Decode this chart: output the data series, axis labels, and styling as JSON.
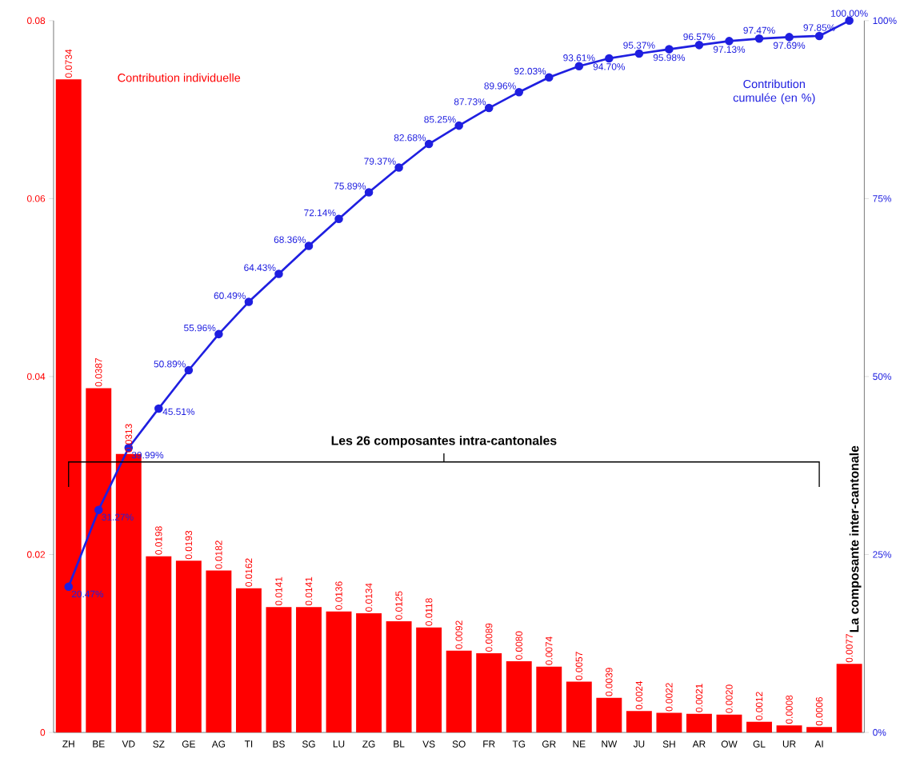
{
  "chart_data": {
    "type": "bar",
    "categories": [
      "ZH",
      "BE",
      "VD",
      "SZ",
      "GE",
      "AG",
      "TI",
      "BS",
      "SG",
      "LU",
      "ZG",
      "BL",
      "VS",
      "SO",
      "FR",
      "TG",
      "GR",
      "NE",
      "NW",
      "JU",
      "SH",
      "AR",
      "OW",
      "GL",
      "UR",
      "AI",
      null
    ],
    "series": [
      {
        "name": "Contribution individuelle",
        "color": "#ff0000",
        "values": [
          0.0734,
          0.0387,
          0.0313,
          0.0198,
          0.0193,
          0.0182,
          0.0162,
          0.0141,
          0.0141,
          0.0136,
          0.0134,
          0.0125,
          0.0118,
          0.0092,
          0.0089,
          0.008,
          0.0074,
          0.0057,
          0.0039,
          0.0024,
          0.0022,
          0.0021,
          0.002,
          0.0012,
          0.0008,
          0.0006,
          0.0077
        ],
        "value_labels": [
          "0.0734",
          "0.0387",
          "0.0313",
          "0.0198",
          "0.0193",
          "0.0182",
          "0.0162",
          "0.0141",
          "0.0141",
          "0.0136",
          "0.0134",
          "0.0125",
          "0.0118",
          "0.0092",
          "0.0089",
          "0.0080",
          "0.0074",
          "0.0057",
          "0.0039",
          "0.0024",
          "0.0022",
          "0.0021",
          "0.0020",
          "0.0012",
          "0.0008",
          "0.0006",
          "0.0077"
        ]
      },
      {
        "name": "Contribution cumulée (en %)",
        "type": "line",
        "axis": "y2",
        "color": "#1f1fe0",
        "marker": "circle",
        "values": [
          20.47,
          31.27,
          39.99,
          45.51,
          50.89,
          55.96,
          60.49,
          64.43,
          68.36,
          72.14,
          75.89,
          79.37,
          82.68,
          85.25,
          87.73,
          89.96,
          92.03,
          93.61,
          94.7,
          95.37,
          95.98,
          96.57,
          97.13,
          97.47,
          97.69,
          97.85,
          100.0
        ],
        "value_labels": [
          "20.47%",
          "31.27%",
          "39.99%",
          "45.51%",
          "50.89%",
          "55.96%",
          "60.49%",
          "64.43%",
          "68.36%",
          "72.14%",
          "75.89%",
          "79.37%",
          "82.68%",
          "85.25%",
          "87.73%",
          "89.96%",
          "92.03%",
          "93.61%",
          "94.70%",
          "95.37%",
          "95.98%",
          "96.57%",
          "97.13%",
          "97.47%",
          "97.69%",
          "97.85%",
          "100.00%"
        ]
      }
    ],
    "ylim": [
      0,
      0.08
    ],
    "yticks": [
      0,
      0.02,
      0.04,
      0.06,
      0.08
    ],
    "y2lim": [
      0,
      100
    ],
    "y2ticks": [
      {
        "value": 0,
        "label": "0%"
      },
      {
        "value": 25,
        "label": "25%"
      },
      {
        "value": 50,
        "label": "50%"
      },
      {
        "value": 75,
        "label": "75%"
      },
      {
        "value": 100,
        "label": "100%"
      }
    ],
    "annotations": [
      "Les 26 composantes intra-cantonales",
      "La composante inter-cantonale"
    ]
  }
}
